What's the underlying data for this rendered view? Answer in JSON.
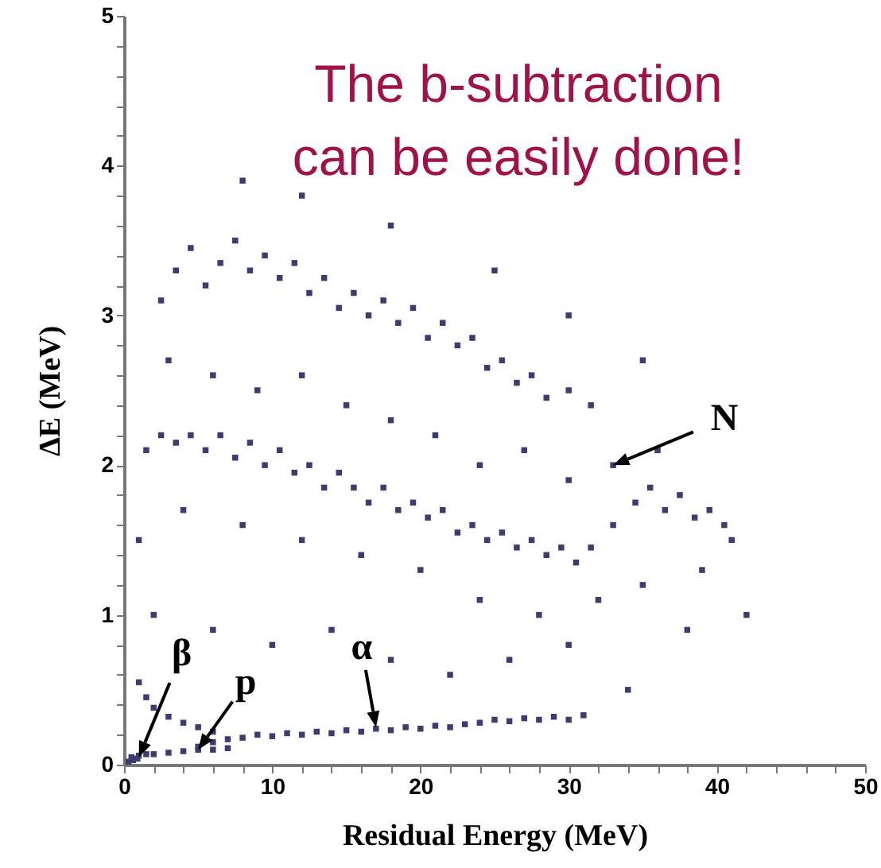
{
  "chart_data": {
    "type": "scatter",
    "xlabel": "Residual Energy (MeV)",
    "ylabel": "ΔE (MeV)",
    "annotations": [
      "The b-subtraction can be easily done!",
      {
        "text": "N",
        "x": 33,
        "y": 2.0
      },
      {
        "text": "β",
        "x": 1,
        "y": 0.05
      },
      {
        "text": "p",
        "x": 5,
        "y": 0.1
      },
      {
        "text": "α",
        "x": 17,
        "y": 0.25
      }
    ],
    "x": [
      2.5,
      3.5,
      4.5,
      5.5,
      6.5,
      7.5,
      8.5,
      9.5,
      10.5,
      11.5,
      12.5,
      13.5,
      14.5,
      15.5,
      16.5,
      17.5,
      18.5,
      19.5,
      20.5,
      21.5,
      22.5,
      23.5,
      24.5,
      25.5,
      26.5,
      27.5,
      28.5,
      30,
      31.5,
      1.5,
      2.5,
      3.5,
      4.5,
      5.5,
      6.5,
      7.5,
      8.5,
      9.5,
      10.5,
      11.5,
      12.5,
      13.5,
      14.5,
      15.5,
      16.5,
      17.5,
      18.5,
      19.5,
      20.5,
      21.5,
      22.5,
      23.5,
      24.5,
      25.5,
      26.5,
      27.5,
      28.5,
      29.5,
      30.5,
      31.5,
      33,
      34.5,
      35.5,
      36.5,
      37.5,
      38.5,
      39.5,
      40.5,
      41,
      3,
      6,
      9,
      12,
      15,
      18,
      21,
      24,
      27,
      30,
      33,
      36,
      39,
      35,
      32,
      28,
      24,
      20,
      16,
      12,
      8,
      4,
      1,
      2,
      6,
      10,
      14,
      18,
      22,
      26,
      30,
      34,
      38,
      42,
      12,
      18,
      8,
      25,
      30,
      35,
      5,
      6,
      7,
      8,
      9,
      10,
      11,
      12,
      13,
      14,
      15,
      16,
      17,
      18,
      19,
      20,
      21,
      22,
      23,
      24,
      25,
      26,
      27,
      28,
      29,
      30,
      31,
      0.5,
      1,
      1.5,
      2,
      3,
      4,
      5,
      6,
      7,
      1,
      1.5,
      2,
      3,
      4,
      5,
      6,
      0.3,
      0.6,
      0.9
    ],
    "values": [
      3.1,
      3.3,
      3.45,
      3.2,
      3.35,
      3.5,
      3.3,
      3.4,
      3.25,
      3.35,
      3.15,
      3.25,
      3.05,
      3.15,
      3.0,
      3.1,
      2.95,
      3.05,
      2.85,
      2.95,
      2.8,
      2.85,
      2.65,
      2.7,
      2.55,
      2.6,
      2.45,
      2.5,
      2.4,
      2.1,
      2.2,
      2.15,
      2.2,
      2.1,
      2.2,
      2.05,
      2.15,
      2.0,
      2.1,
      1.95,
      2.0,
      1.85,
      1.95,
      1.85,
      1.75,
      1.85,
      1.7,
      1.75,
      1.65,
      1.7,
      1.55,
      1.6,
      1.5,
      1.55,
      1.45,
      1.5,
      1.4,
      1.45,
      1.35,
      1.45,
      1.6,
      1.75,
      1.85,
      1.7,
      1.8,
      1.65,
      1.7,
      1.6,
      1.5,
      2.7,
      2.6,
      2.5,
      2.6,
      2.4,
      2.3,
      2.2,
      2.0,
      2.1,
      1.9,
      2.0,
      2.1,
      1.3,
      1.2,
      1.1,
      1.0,
      1.1,
      1.3,
      1.4,
      1.5,
      1.6,
      1.7,
      1.5,
      1.0,
      0.9,
      0.8,
      0.9,
      0.7,
      0.6,
      0.7,
      0.8,
      0.5,
      0.9,
      1.0,
      3.8,
      3.6,
      3.9,
      3.3,
      3.0,
      2.7,
      0.12,
      0.15,
      0.17,
      0.18,
      0.2,
      0.19,
      0.21,
      0.2,
      0.22,
      0.21,
      0.23,
      0.22,
      0.24,
      0.23,
      0.25,
      0.24,
      0.26,
      0.25,
      0.27,
      0.28,
      0.3,
      0.29,
      0.31,
      0.3,
      0.32,
      0.3,
      0.33,
      0.05,
      0.06,
      0.07,
      0.07,
      0.08,
      0.09,
      0.1,
      0.1,
      0.11,
      0.55,
      0.45,
      0.38,
      0.32,
      0.28,
      0.25,
      0.22,
      0.02,
      0.03,
      0.04
    ],
    "color": "#3c3c70",
    "marker": "square",
    "xlim": [
      0,
      50
    ],
    "ylim": [
      0,
      5
    ],
    "xticks": [
      0,
      {
        "value": 2,
        "label": null
      },
      {
        "value": 4,
        "label": null
      },
      {
        "value": 6,
        "label": null
      },
      {
        "value": 8,
        "label": null
      },
      10,
      {
        "value": 12,
        "label": null
      },
      {
        "value": 14,
        "label": null
      },
      {
        "value": 16,
        "label": null
      },
      {
        "value": 18,
        "label": null
      },
      20,
      {
        "value": 22,
        "label": null
      },
      {
        "value": 24,
        "label": null
      },
      {
        "value": 26,
        "label": null
      },
      {
        "value": 28,
        "label": null
      },
      30,
      {
        "value": 32,
        "label": null
      },
      {
        "value": 34,
        "label": null
      },
      {
        "value": 36,
        "label": null
      },
      {
        "value": 38,
        "label": null
      },
      40,
      {
        "value": 42,
        "label": null
      },
      {
        "value": 44,
        "label": null
      },
      {
        "value": 46,
        "label": null
      },
      {
        "value": 48,
        "label": null
      },
      50
    ],
    "yticks": [
      0,
      {
        "value": 0.2,
        "label": null
      },
      {
        "value": 0.4,
        "label": null
      },
      {
        "value": 0.6,
        "label": null
      },
      {
        "value": 0.8,
        "label": null
      },
      1,
      {
        "value": 1.2,
        "label": null
      },
      {
        "value": 1.4,
        "label": null
      },
      {
        "value": 1.6,
        "label": null
      },
      {
        "value": 1.8,
        "label": null
      },
      2,
      {
        "value": 2.2,
        "label": null
      },
      {
        "value": 2.4,
        "label": null
      },
      {
        "value": 2.6,
        "label": null
      },
      {
        "value": 2.8,
        "label": null
      },
      3,
      {
        "value": 3.2,
        "label": null
      },
      {
        "value": 3.4,
        "label": null
      },
      {
        "value": 3.6,
        "label": null
      },
      {
        "value": 3.8,
        "label": null
      },
      4,
      {
        "value": 4.2,
        "label": null
      },
      {
        "value": 4.4,
        "label": null
      },
      {
        "value": 4.6,
        "label": null
      },
      {
        "value": 4.8,
        "label": null
      },
      5
    ],
    "grid": false
  }
}
